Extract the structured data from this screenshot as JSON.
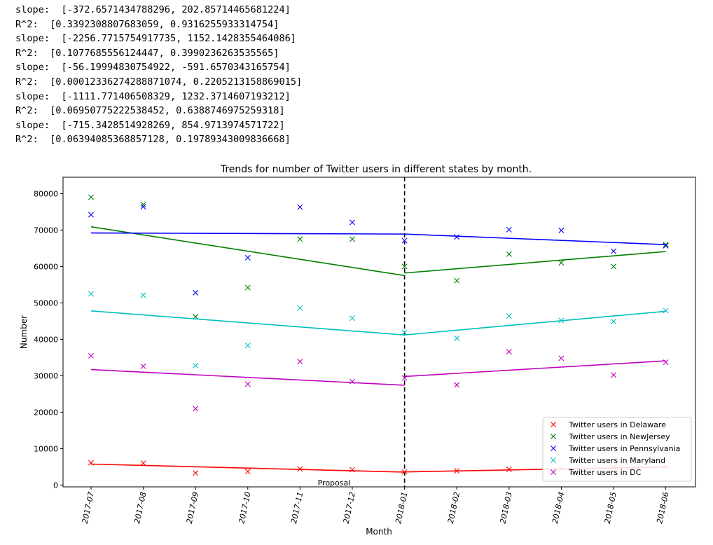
{
  "console": {
    "lines": [
      "slope:  [-372.6571434788296, 202.85714465681224]",
      "R^2:  [0.3392308807683059, 0.9316255933314754]",
      "slope:  [-2256.7715754917735, 1152.1428355464086]",
      "R^2:  [0.1077685556124447, 0.3990236263535565]",
      "slope:  [-56.19994830754922, -591.6570343165754]",
      "R^2:  [0.00012336274288871074, 0.2205213158869015]",
      "slope:  [-1111.771406508329, 1232.3714607193212]",
      "R^2:  [0.06950775222538452, 0.6388746975259318]",
      "slope:  [-715.3428514928269, 854.9713974571722]",
      "R^2:  [0.06394085368857128, 0.19789343009836668]"
    ]
  },
  "chart_data": {
    "type": "scatter",
    "title": "Trends for number of Twitter users in different states by month.",
    "xlabel": "Month",
    "ylabel": "Number",
    "categories": [
      "2017-07",
      "2017-08",
      "2017-09",
      "2017-10",
      "2017-11",
      "2017-12",
      "2018-01",
      "2018-02",
      "2018-03",
      "2018-04",
      "2018-05",
      "2018-06"
    ],
    "ylim": [
      -500,
      84500
    ],
    "yticks": [
      0,
      10000,
      20000,
      30000,
      40000,
      50000,
      60000,
      70000,
      80000
    ],
    "grid": false,
    "legend_position": "lower-right",
    "vline": {
      "category_index": 6,
      "label": "Proposal",
      "style": "dashed",
      "color": "#000000"
    },
    "series": [
      {
        "name": "Twitter users in Delaware",
        "color": "#ff0000",
        "values": [
          6100,
          6000,
          3300,
          3700,
          4400,
          4200,
          3600,
          3900,
          4300,
          4500,
          4800,
          4900
        ],
        "trend": [
          [
            0,
            5750
          ],
          [
            6,
            3550
          ],
          [
            6,
            3600
          ],
          [
            11,
            4950
          ]
        ]
      },
      {
        "name": "Twitter users in NewJersey",
        "color": "#008000",
        "values": [
          79000,
          77000,
          46200,
          54200,
          67500,
          67500,
          60000,
          56100,
          63400,
          61000,
          60000,
          66000
        ],
        "trend": [
          [
            0,
            70900
          ],
          [
            6,
            57500
          ],
          [
            6,
            58200
          ],
          [
            11,
            64100
          ]
        ]
      },
      {
        "name": "Twitter users in Pennsylvania",
        "color": "#0000ff",
        "values": [
          74200,
          76400,
          52800,
          62400,
          76300,
          72100,
          67100,
          68100,
          70100,
          69900,
          64200,
          65700
        ],
        "trend": [
          [
            0,
            69200
          ],
          [
            6,
            68900
          ],
          [
            6,
            68900
          ],
          [
            11,
            66000
          ]
        ]
      },
      {
        "name": "Twitter users in Maryland",
        "color": "#00bfbf",
        "values": [
          52500,
          52100,
          32800,
          38300,
          48600,
          45800,
          41900,
          40300,
          46400,
          45200,
          44900,
          47900
        ],
        "trend": [
          [
            0,
            47800
          ],
          [
            6,
            41200
          ],
          [
            6,
            41200
          ],
          [
            11,
            47700
          ]
        ]
      },
      {
        "name": "Twitter users in DC",
        "color": "#bf00bf",
        "values": [
          35500,
          32600,
          21000,
          27700,
          33900,
          28400,
          29400,
          27500,
          36600,
          34800,
          30200,
          33700
        ],
        "trend": [
          [
            0,
            31700
          ],
          [
            6,
            27400
          ],
          [
            6,
            29800
          ],
          [
            11,
            34100
          ]
        ]
      }
    ]
  }
}
